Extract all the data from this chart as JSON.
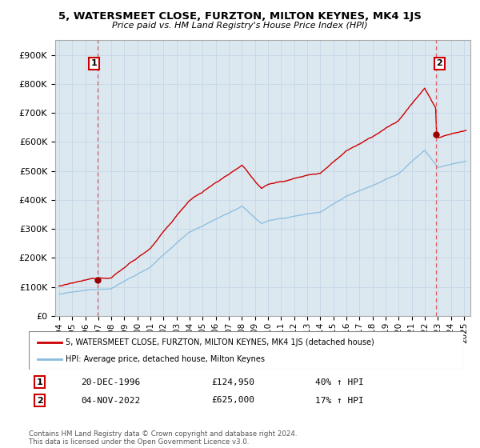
{
  "title": "5, WATERSMEET CLOSE, FURZTON, MILTON KEYNES, MK4 1JS",
  "subtitle": "Price paid vs. HM Land Registry's House Price Index (HPI)",
  "ylabel_ticks": [
    "£0",
    "£100K",
    "£200K",
    "£300K",
    "£400K",
    "£500K",
    "£600K",
    "£700K",
    "£800K",
    "£900K"
  ],
  "ytick_values": [
    0,
    100000,
    200000,
    300000,
    400000,
    500000,
    600000,
    700000,
    800000,
    900000
  ],
  "ylim": [
    0,
    950000
  ],
  "xlim_start": 1993.7,
  "xlim_end": 2025.5,
  "sale1_x": 1996.97,
  "sale1_y": 124950,
  "sale2_x": 2022.84,
  "sale2_y": 625000,
  "sale1_date": "20-DEC-1996",
  "sale1_price": "£124,950",
  "sale1_hpi": "40% ↑ HPI",
  "sale2_date": "04-NOV-2022",
  "sale2_price": "£625,000",
  "sale2_hpi": "17% ↑ HPI",
  "line_color_red": "#cc0000",
  "line_color_blue": "#88bbdd",
  "dot_color_red": "#990000",
  "vline_color": "#dd4444",
  "grid_color": "#c8d8e8",
  "bg_plot": "#dce8f0",
  "bg_fig": "#ffffff",
  "legend_label_red": "5, WATERSMEET CLOSE, FURZTON, MILTON KEYNES, MK4 1JS (detached house)",
  "legend_label_blue": "HPI: Average price, detached house, Milton Keynes",
  "footer": "Contains HM Land Registry data © Crown copyright and database right 2024.\nThis data is licensed under the Open Government Licence v3.0.",
  "xtick_years": [
    1994,
    1995,
    1996,
    1997,
    1998,
    1999,
    2000,
    2001,
    2002,
    2003,
    2004,
    2005,
    2006,
    2007,
    2008,
    2009,
    2010,
    2011,
    2012,
    2013,
    2014,
    2015,
    2016,
    2017,
    2018,
    2019,
    2020,
    2021,
    2022,
    2023,
    2024,
    2025
  ]
}
